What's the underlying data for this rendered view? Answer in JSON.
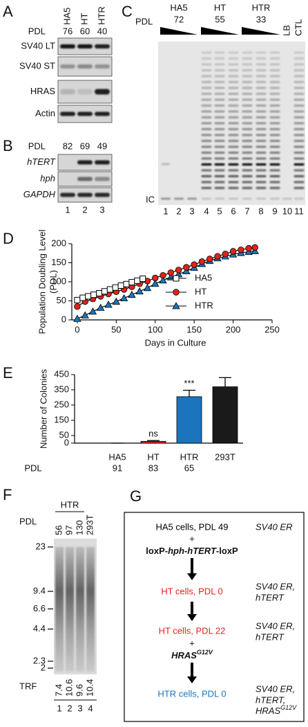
{
  "panel_a": {
    "label": "A",
    "pdl_label": "PDL",
    "lanes": [
      "HA5",
      "HT",
      "HTR"
    ],
    "pdl": [
      76,
      60,
      40
    ],
    "rows": [
      "SV40 LT",
      "SV40 ST",
      "HRAS",
      "Actin"
    ]
  },
  "panel_b": {
    "label": "B",
    "pdl_label": "PDL",
    "pdl": [
      82,
      69,
      49
    ],
    "rows": [
      "hTERT",
      "hph",
      "GAPDH"
    ],
    "lane_numbers": [
      1,
      2,
      3
    ]
  },
  "panel_c": {
    "label": "C",
    "pdl_label": "PDL",
    "groups": [
      {
        "name": "HA5",
        "pdl": 72
      },
      {
        "name": "HT",
        "pdl": 55
      },
      {
        "name": "HTR",
        "pdl": 33
      }
    ],
    "controls": [
      "LB",
      "CTL"
    ],
    "ic_label": "IC",
    "lane_numbers": [
      1,
      2,
      3,
      4,
      5,
      6,
      7,
      8,
      9,
      10,
      11
    ]
  },
  "chart_data": [
    {
      "panel_label": "D",
      "type": "line",
      "ylabel": [
        "Population Doubling Level",
        "(PDL)"
      ],
      "xlabel": "Days in Culture",
      "xlim": [
        -7,
        250
      ],
      "xticks": [
        0,
        50,
        100,
        150,
        200,
        250
      ],
      "ylim": [
        0,
        200
      ],
      "yticks": [
        0,
        50,
        100,
        150,
        200
      ],
      "line_color": "#000000",
      "legend": "right",
      "series": [
        {
          "name": "HA5",
          "color": "#ffffff",
          "marker": "square",
          "x": [
            0,
            7,
            14,
            21,
            28,
            35,
            42,
            49,
            56,
            63,
            70,
            77,
            84
          ],
          "values": [
            52,
            58,
            62,
            66,
            70,
            75,
            80,
            85,
            90,
            94,
            99,
            103,
            108
          ]
        },
        {
          "name": "HT",
          "color": "#e2231a",
          "marker": "circle",
          "x": [
            0,
            10,
            20,
            30,
            40,
            50,
            60,
            70,
            80,
            90,
            100,
            110,
            120,
            130,
            140,
            150,
            160,
            170,
            180,
            190,
            200,
            210,
            220,
            228
          ],
          "values": [
            35,
            48,
            55,
            62,
            68,
            74,
            80,
            87,
            95,
            102,
            110,
            117,
            124,
            131,
            138,
            145,
            153,
            160,
            167,
            173,
            180,
            184,
            188,
            190
          ]
        },
        {
          "name": "HTR",
          "color": "#1c75bc",
          "marker": "triangle",
          "x": [
            0,
            10,
            20,
            30,
            40,
            50,
            60,
            70,
            80,
            90,
            100,
            110,
            120,
            130,
            140,
            150,
            160,
            170,
            180,
            190,
            200,
            210,
            220,
            228
          ],
          "values": [
            3,
            12,
            22,
            32,
            40,
            48,
            57,
            66,
            75,
            84,
            95,
            104,
            112,
            120,
            128,
            137,
            147,
            155,
            162,
            167,
            172,
            176,
            179,
            181
          ]
        }
      ]
    },
    {
      "panel_label": "E",
      "type": "bar",
      "ylabel": "Number of Colonies",
      "categories": [
        "HA5",
        "HT",
        "HTR",
        "293T"
      ],
      "values": [
        0,
        12,
        305,
        370
      ],
      "errors": [
        0,
        5,
        42,
        60
      ],
      "colors": [
        "#ffffff",
        "#e2231a",
        "#1c75bc",
        "#1a1a1a"
      ],
      "annotations": [
        null,
        "ns",
        "***",
        null
      ],
      "pdl_label": "PDL",
      "pdl": [
        91,
        83,
        65,
        null
      ],
      "ylim": [
        0,
        450
      ],
      "yticks": [
        0,
        50,
        150,
        250,
        350,
        450
      ]
    }
  ],
  "panel_f": {
    "label": "F",
    "group": "HTR",
    "pdl_label": "PDL",
    "lanes": [
      56,
      97,
      130,
      "293T"
    ],
    "size_markers": [
      23,
      9.4,
      6.6,
      4.4,
      2.3,
      2.0
    ],
    "trf_label": "TRF",
    "trf": [
      7.4,
      10.6,
      9.6,
      10.4
    ],
    "lane_numbers": [
      1,
      2,
      3,
      4
    ]
  },
  "panel_g": {
    "label": "G",
    "steps": [
      {
        "cells": "HA5 cells, PDL 49",
        "color": "#000000",
        "genotype": [
          "SV40 ER"
        ]
      },
      {
        "cells": "HT cells, PDL 0",
        "color": "#e2231a",
        "genotype": [
          "SV40 ER,",
          "hTERT"
        ]
      },
      {
        "cells": "HT cells, PDL 22",
        "color": "#e2231a",
        "genotype": [
          "SV40 ER,",
          "hTERT"
        ]
      },
      {
        "cells": "HTR cells, PDL 0",
        "color": "#1c75bc",
        "genotype": [
          "SV40 ER,",
          "hTERT,",
          {
            "base": "HRAS",
            "sup": "G12V"
          }
        ]
      }
    ],
    "additions": [
      {
        "plus": "+",
        "parts": [
          "loxP-",
          "hph",
          "-",
          "hTERT",
          "-loxP"
        ],
        "italic": [
          false,
          true,
          false,
          true,
          false
        ],
        "sup": [
          false,
          false,
          false,
          false,
          false
        ]
      },
      {
        "plus": "+",
        "parts": [
          "HRAS",
          "G12V"
        ],
        "italic": [
          true,
          true
        ],
        "sup": [
          false,
          true
        ]
      }
    ]
  }
}
